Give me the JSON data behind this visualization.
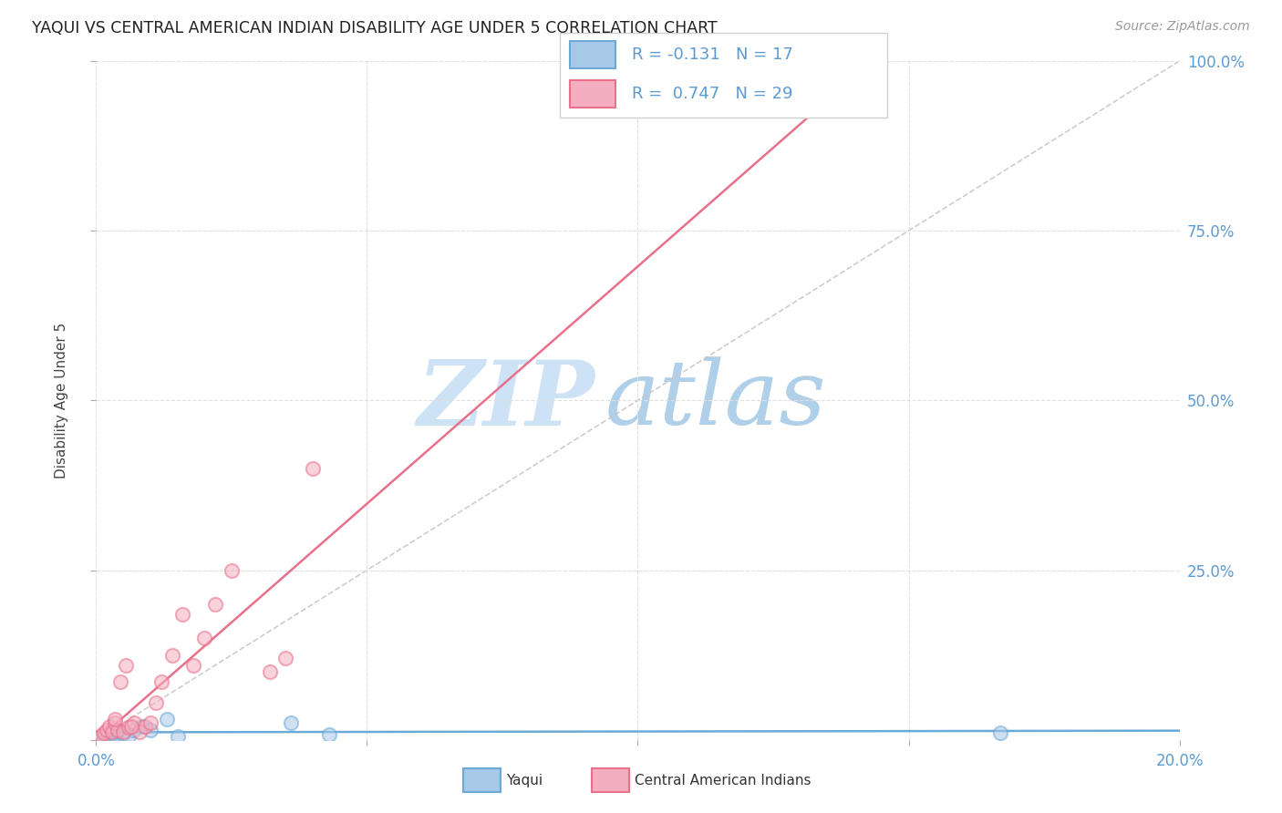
{
  "title": "YAQUI VS CENTRAL AMERICAN INDIAN DISABILITY AGE UNDER 5 CORRELATION CHART",
  "source": "Source: ZipAtlas.com",
  "ylabel": "Disability Age Under 5",
  "xlim": [
    0.0,
    20.0
  ],
  "ylim": [
    0.0,
    100.0
  ],
  "yaqui_color_face": "#a8c8e8",
  "yaqui_color_edge": "#6aaad8",
  "central_color_face": "#f5aec0",
  "central_color_edge": "#e8708a",
  "yaqui_line_color": "#6aaad8",
  "central_line_color": "#e8708a",
  "ref_line_color": "#c8c8c8",
  "axis_tick_color": "#5b9bd5",
  "title_color": "#222222",
  "source_color": "#999999",
  "watermark_zip_color": "#c8dff0",
  "watermark_atlas_color": "#b8d8f5",
  "grid_color": "#e0e0e0",
  "background_color": "#ffffff",
  "legend_text_color": "#5b9bd5",
  "legend_border_color": "#d0d0d0",
  "yaqui_x": [
    0.1,
    0.15,
    0.2,
    0.25,
    0.3,
    0.35,
    0.4,
    0.5,
    0.6,
    0.7,
    0.85,
    1.0,
    1.3,
    1.5,
    3.6,
    4.3,
    16.7
  ],
  "yaqui_y": [
    0.3,
    0.5,
    0.8,
    0.6,
    1.0,
    0.7,
    1.2,
    0.9,
    0.5,
    1.5,
    2.0,
    1.5,
    3.0,
    0.5,
    2.5,
    0.8,
    1.0
  ],
  "central_x": [
    0.05,
    0.1,
    0.15,
    0.2,
    0.25,
    0.3,
    0.35,
    0.4,
    0.45,
    0.5,
    0.55,
    0.6,
    0.7,
    0.8,
    0.9,
    1.0,
    1.1,
    1.2,
    1.4,
    1.6,
    1.8,
    2.0,
    2.2,
    2.5,
    3.2,
    3.5,
    4.0,
    0.65,
    0.35
  ],
  "central_y": [
    0.3,
    0.6,
    1.0,
    1.5,
    2.0,
    1.2,
    2.5,
    1.5,
    8.5,
    1.2,
    11.0,
    1.8,
    2.5,
    1.2,
    2.0,
    2.5,
    5.5,
    8.5,
    12.5,
    18.5,
    11.0,
    15.0,
    20.0,
    25.0,
    10.0,
    12.0,
    40.0,
    2.0,
    3.0
  ],
  "marker_size": 120,
  "marker_alpha": 0.55,
  "marker_lw": 1.5,
  "yaqui_R": -0.131,
  "yaqui_N": 17,
  "central_R": 0.747,
  "central_N": 29
}
